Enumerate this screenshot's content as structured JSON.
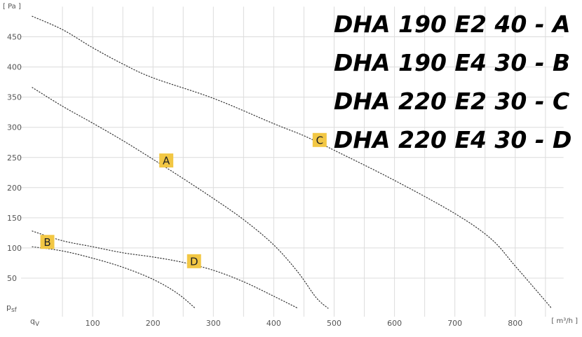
{
  "colors": {
    "label_fill": "#f2c744",
    "grid": "#dcdcdc",
    "curve": "#333333"
  },
  "chart_data": {
    "type": "line",
    "title": "",
    "xlabel": "",
    "ylabel": "",
    "x_unit": "[ m³/h ]",
    "y_unit": "[ Pa ]",
    "x_axis_symbol": "q",
    "x_axis_subscript": "V",
    "y_axis_symbol": "p",
    "y_axis_subscript": "sf",
    "xlim": [
      0,
      880
    ],
    "ylim": [
      0,
      500
    ],
    "x_ticks": [
      100,
      200,
      300,
      400,
      500,
      600,
      700,
      800
    ],
    "y_ticks": [
      50,
      100,
      150,
      200,
      250,
      300,
      350,
      400,
      450
    ],
    "grid": true,
    "models": [
      "DHA 190 E2 40 - A",
      "DHA 190 E4 30 - B",
      "DHA 220 E2 30 - C",
      "DHA 220 E4 30 - D"
    ],
    "series": [
      {
        "name": "A",
        "label_at": [
          222,
          245
        ],
        "points": [
          [
            0,
            366
          ],
          [
            50,
            335
          ],
          [
            100,
            307
          ],
          [
            150,
            278
          ],
          [
            200,
            247
          ],
          [
            250,
            215
          ],
          [
            300,
            182
          ],
          [
            350,
            147
          ],
          [
            400,
            105
          ],
          [
            440,
            60
          ],
          [
            470,
            18
          ],
          [
            490,
            0
          ]
        ]
      },
      {
        "name": "B",
        "label_at": [
          25,
          110
        ],
        "points": [
          [
            0,
            102
          ],
          [
            50,
            95
          ],
          [
            100,
            83
          ],
          [
            150,
            68
          ],
          [
            200,
            48
          ],
          [
            240,
            25
          ],
          [
            270,
            0
          ]
        ]
      },
      {
        "name": "C",
        "label_at": [
          476,
          279
        ],
        "points": [
          [
            0,
            484
          ],
          [
            50,
            462
          ],
          [
            100,
            432
          ],
          [
            150,
            405
          ],
          [
            200,
            382
          ],
          [
            300,
            348
          ],
          [
            400,
            306
          ],
          [
            450,
            286
          ],
          [
            500,
            262
          ],
          [
            600,
            212
          ],
          [
            700,
            157
          ],
          [
            760,
            115
          ],
          [
            800,
            70
          ],
          [
            850,
            12
          ],
          [
            860,
            0
          ]
        ]
      },
      {
        "name": "D",
        "label_at": [
          268,
          78
        ],
        "points": [
          [
            0,
            128
          ],
          [
            50,
            112
          ],
          [
            100,
            102
          ],
          [
            150,
            92
          ],
          [
            200,
            85
          ],
          [
            250,
            76
          ],
          [
            300,
            63
          ],
          [
            350,
            44
          ],
          [
            400,
            20
          ],
          [
            440,
            0
          ]
        ]
      }
    ]
  }
}
